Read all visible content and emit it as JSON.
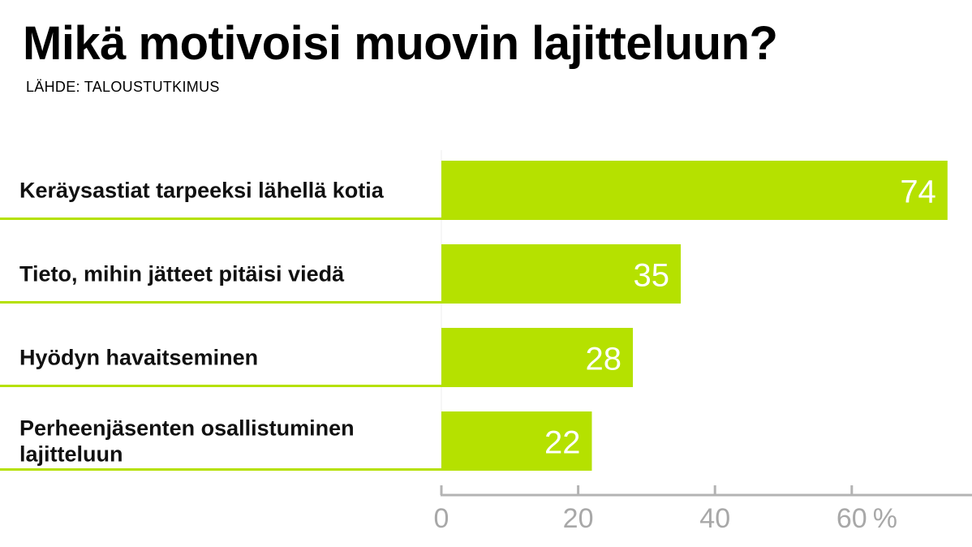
{
  "chart_data": {
    "type": "bar",
    "orientation": "horizontal",
    "title": "Mikä motivoisi muovin lajitteluun?",
    "subtitle": "LÄHDE: TALOUSTUTKIMUS",
    "categories": [
      [
        "Keräysastiat tarpeeksi lähellä kotia"
      ],
      [
        "Tieto, mihin jätteet pitäisi viedä"
      ],
      [
        "Hyödyn havaitseminen"
      ],
      [
        "Perheenjäsenten osallistuminen",
        "lajitteluun"
      ]
    ],
    "values": [
      74,
      35,
      28,
      22
    ],
    "xlim": [
      0,
      77
    ],
    "xticks": [
      0,
      20,
      40,
      60
    ],
    "tick_labels": [
      "0",
      "20",
      "40",
      "60"
    ],
    "unit_label": "%",
    "xlabel": "",
    "ylabel": "",
    "grid": false,
    "legend": "none",
    "colors": {
      "bar": "#b5e100",
      "value_text": "#ffffff",
      "axis": "#b3b3b3",
      "tick_text": "#a8a8a8",
      "row_line": "#b5e100"
    }
  }
}
